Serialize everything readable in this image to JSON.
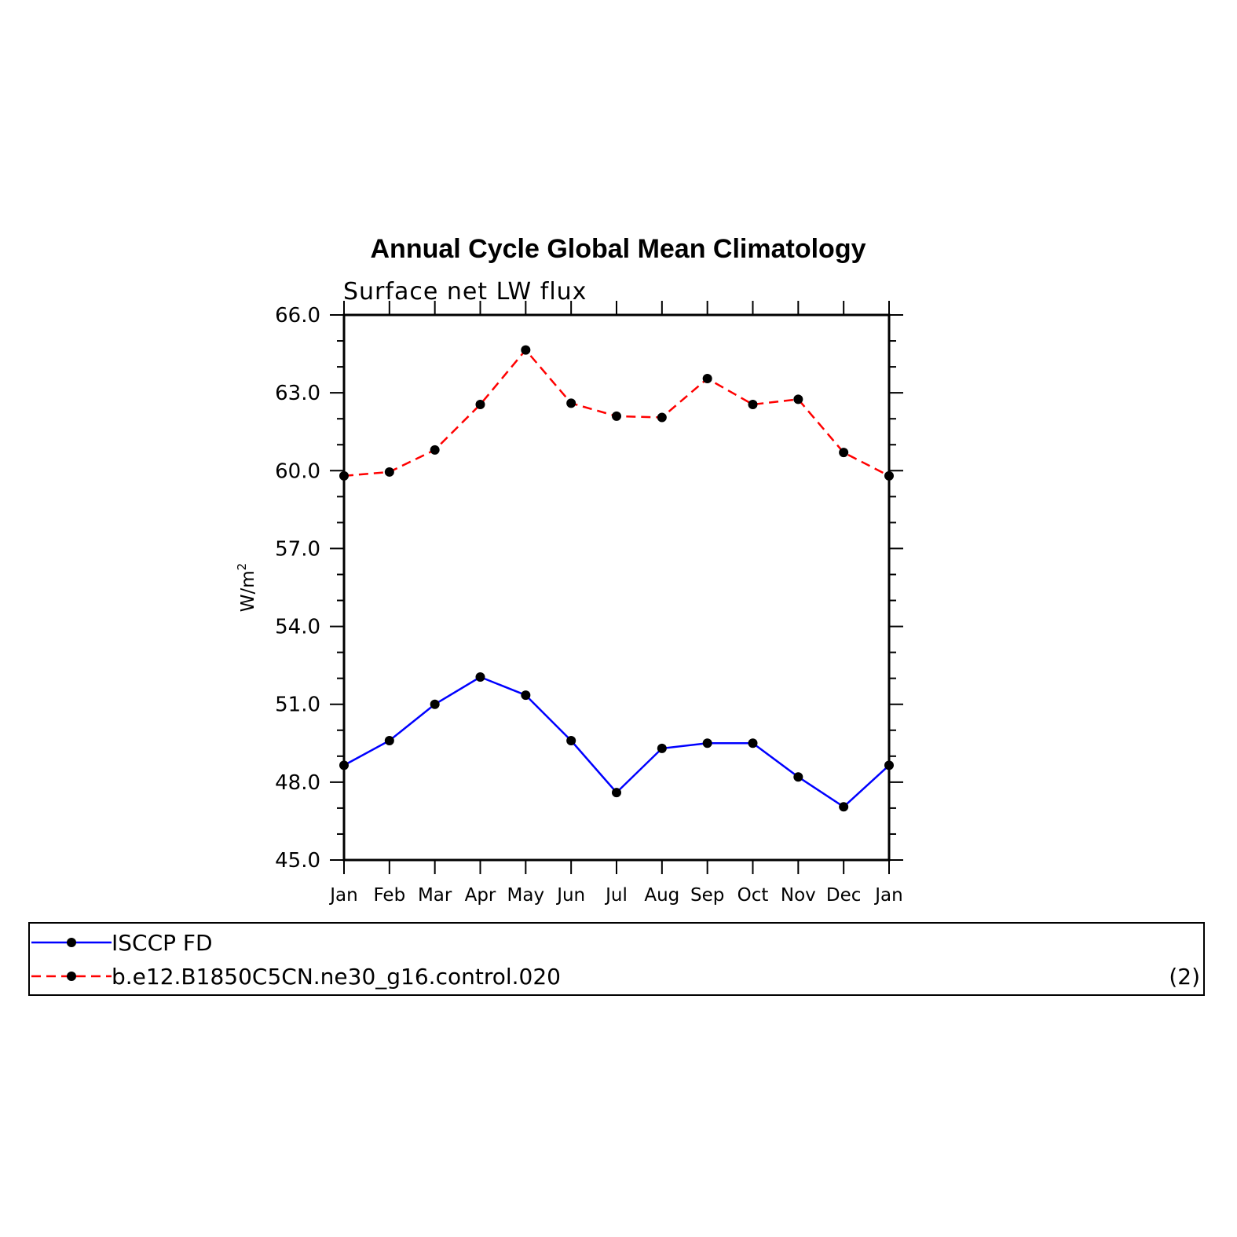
{
  "chart_data": {
    "type": "line",
    "title": "Annual Cycle Global Mean Climatology",
    "subtitle": "Surface net LW flux",
    "ylabel": "W/m",
    "ylabel_superscript": "2",
    "ylim": [
      45.0,
      66.0
    ],
    "yticks": [
      "45.0",
      "48.0",
      "51.0",
      "54.0",
      "57.0",
      "60.0",
      "63.0",
      "66.0"
    ],
    "categories": [
      "Jan",
      "Feb",
      "Mar",
      "Apr",
      "May",
      "Jun",
      "Jul",
      "Aug",
      "Sep",
      "Oct",
      "Nov",
      "Dec",
      "Jan"
    ],
    "series": [
      {
        "name": "ISCCP FD",
        "color": "#0000ff",
        "dash": "solid",
        "values": [
          48.65,
          49.6,
          51.0,
          52.05,
          51.35,
          49.6,
          47.6,
          49.3,
          49.5,
          49.5,
          48.2,
          47.05,
          48.65
        ]
      },
      {
        "name": "b.e12.B1850C5CN.ne30_g16.control.020",
        "color": "#ff0000",
        "dash": "dashed",
        "values": [
          59.8,
          59.95,
          60.8,
          62.55,
          64.65,
          62.6,
          62.1,
          62.05,
          63.55,
          62.55,
          62.75,
          60.7,
          59.8
        ]
      }
    ],
    "marker_color": "#000000",
    "legend_placement": "bottom",
    "legend_note": "(2)",
    "grid": false
  }
}
